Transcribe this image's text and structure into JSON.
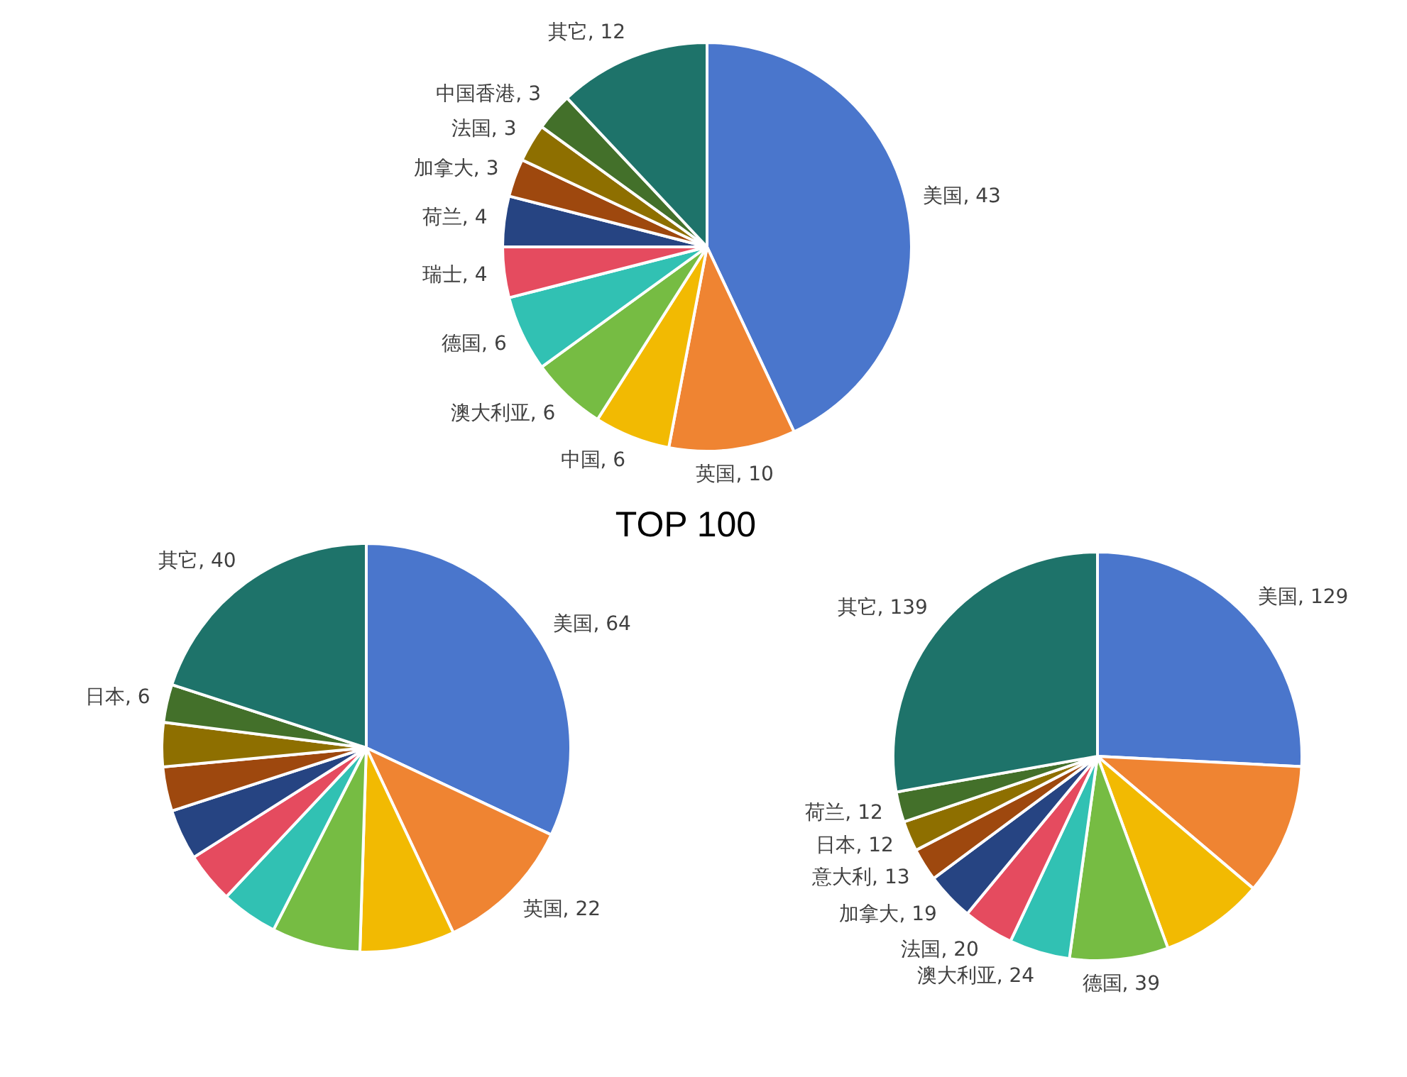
{
  "chart_data": [
    {
      "type": "pie",
      "title": "TOP 100",
      "categories": [
        "美国",
        "英国",
        "中国",
        "澳大利亚",
        "德国",
        "瑞士",
        "荷兰",
        "加拿大",
        "法国",
        "中国香港",
        "其它"
      ],
      "values": [
        43,
        10,
        6,
        6,
        6,
        4,
        4,
        3,
        3,
        3,
        12
      ],
      "colors": [
        "#4a76cc",
        "#ef8432",
        "#f2ba02",
        "#76bc43",
        "#31c1b3",
        "#e54b5f",
        "#264482",
        "#9e480e",
        "#8e6f00",
        "#43702a",
        "#1e736a"
      ],
      "value_labels": [
        ", 43",
        ", 10",
        ", 6",
        ", 6",
        ", 6",
        ", 4",
        ", 4",
        ", 3",
        ", 3",
        ", 3",
        ", 12"
      ]
    },
    {
      "type": "pie",
      "categories": [
        "美国",
        "英国",
        null,
        null,
        null,
        null,
        null,
        null,
        null,
        "日本",
        "其它"
      ],
      "values": [
        64,
        22,
        15,
        14,
        9,
        8,
        8,
        7,
        7,
        6,
        40
      ],
      "colors": [
        "#4a76cc",
        "#ef8432",
        "#f2ba02",
        "#76bc43",
        "#31c1b3",
        "#e54b5f",
        "#264482",
        "#9e480e",
        "#8e6f00",
        "#43702a",
        "#1e736a"
      ],
      "value_labels": [
        ", 64",
        ", 22",
        null,
        null,
        null,
        null,
        null,
        null,
        null,
        ", 6",
        ", 40"
      ]
    },
    {
      "type": "pie",
      "categories": [
        "美国",
        null,
        null,
        "德国",
        "澳大利亚",
        "法国",
        "加拿大",
        "意大利",
        "日本",
        "荷兰",
        "其它"
      ],
      "values": [
        129,
        52,
        41,
        39,
        24,
        20,
        19,
        13,
        12,
        12,
        139
      ],
      "colors": [
        "#4a76cc",
        "#ef8432",
        "#f2ba02",
        "#76bc43",
        "#31c1b3",
        "#e54b5f",
        "#264482",
        "#9e480e",
        "#8e6f00",
        "#43702a",
        "#1e736a"
      ],
      "value_labels": [
        ", 129",
        null,
        null,
        ", 39",
        ", 24",
        ", 20",
        ", 19",
        ", 13",
        ", 12",
        ", 12",
        ", 139"
      ]
    }
  ]
}
